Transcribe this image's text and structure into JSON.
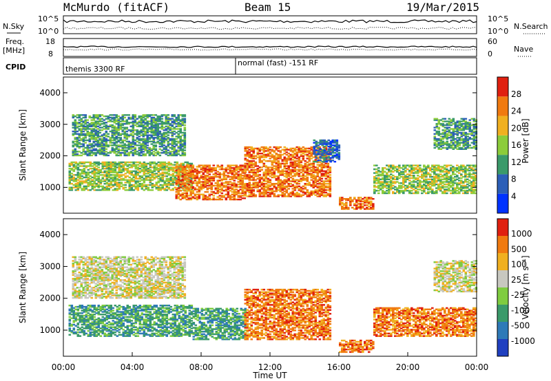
{
  "header": {
    "station": "McMurdo (fitACF)",
    "beam": "Beam 15",
    "date": "19/Mar/2015"
  },
  "top_panels": {
    "nsky_label": "N.Sky",
    "nsky_ticks": [
      "10^5",
      "10^0"
    ],
    "nsearch_label": "N.Search",
    "nsearch_ticks": [
      "10^5",
      "10^0"
    ],
    "freq_label": "Freq.",
    "freq_unit": "[MHz]",
    "freq_ticks": [
      "18",
      "8"
    ],
    "nave_label": "Nave",
    "nave_ticks": [
      "60",
      "0"
    ],
    "cpid_label": "CPID",
    "cpid_segments": [
      {
        "label": "themis 3300 RF",
        "start_hour": 0
      },
      {
        "label": "normal (fast) -151 RF",
        "start_hour": 10
      }
    ]
  },
  "chart_data": [
    {
      "type": "heatmap",
      "name": "power",
      "ylabel": "Slant Range [km]",
      "yticks": [
        "4000",
        "3000",
        "2000",
        "1000"
      ],
      "ylim": [
        180,
        4500
      ],
      "xlim": [
        0,
        24
      ],
      "colorbar_label": "Power [dB]",
      "colorbar_ticks": [
        "28",
        "24",
        "20",
        "16",
        "12",
        "8",
        "4"
      ],
      "colors": [
        "#0033ff",
        "#2c5fb8",
        "#3a9a6a",
        "#8ccc3a",
        "#f0b020",
        "#f07a10",
        "#e02010"
      ],
      "bands": [
        {
          "t0": 0.5,
          "t1": 7.0,
          "r0": 2000,
          "r1": 3300,
          "level": 2
        },
        {
          "t0": 0.3,
          "t1": 7.5,
          "r0": 900,
          "r1": 1800,
          "level": 3
        },
        {
          "t0": 6.5,
          "t1": 10.5,
          "r0": 600,
          "r1": 1700,
          "level": 5
        },
        {
          "t0": 10.5,
          "t1": 15.5,
          "r0": 700,
          "r1": 2300,
          "level": 5
        },
        {
          "t0": 14.5,
          "t1": 16.0,
          "r0": 1800,
          "r1": 2500,
          "level": 1
        },
        {
          "t0": 16.0,
          "t1": 18.0,
          "r0": 300,
          "r1": 700,
          "level": 5
        },
        {
          "t0": 18.0,
          "t1": 24.0,
          "r0": 800,
          "r1": 1700,
          "level": 3
        },
        {
          "t0": 21.5,
          "t1": 24.0,
          "r0": 2200,
          "r1": 3200,
          "level": 2
        }
      ]
    },
    {
      "type": "heatmap",
      "name": "velocity",
      "ylabel": "Slant Range [km]",
      "yticks": [
        "4000",
        "3000",
        "2000",
        "1000"
      ],
      "ylim": [
        180,
        4500
      ],
      "xlim": [
        0,
        24
      ],
      "xlabel": "Time UT",
      "xticks": [
        "00:00",
        "04:00",
        "08:00",
        "12:00",
        "16:00",
        "20:00",
        "00:00"
      ],
      "colorbar_label": "Velocity [m s⁻¹]",
      "colorbar_ticks": [
        "1000",
        "500",
        "100",
        "25",
        "-25",
        "-100",
        "-500",
        "-1000"
      ],
      "colors": [
        "#2040c0",
        "#2e7ab8",
        "#3a9a6a",
        "#7fcc40",
        "#c8c8c0",
        "#f0b020",
        "#f07a10",
        "#e02010"
      ],
      "bands": [
        {
          "t0": 0.5,
          "t1": 7.0,
          "r0": 2000,
          "r1": 3300,
          "level": 4
        },
        {
          "t0": 0.3,
          "t1": 7.5,
          "r0": 800,
          "r1": 1800,
          "level": 2
        },
        {
          "t0": 7.5,
          "t1": 10.5,
          "r0": 700,
          "r1": 1700,
          "level": 2
        },
        {
          "t0": 10.5,
          "t1": 15.5,
          "r0": 700,
          "r1": 2300,
          "level": 6
        },
        {
          "t0": 16.0,
          "t1": 18.0,
          "r0": 300,
          "r1": 700,
          "level": 6
        },
        {
          "t0": 18.0,
          "t1": 24.0,
          "r0": 800,
          "r1": 1700,
          "level": 6
        },
        {
          "t0": 21.5,
          "t1": 24.0,
          "r0": 2200,
          "r1": 3200,
          "level": 4
        }
      ]
    }
  ]
}
